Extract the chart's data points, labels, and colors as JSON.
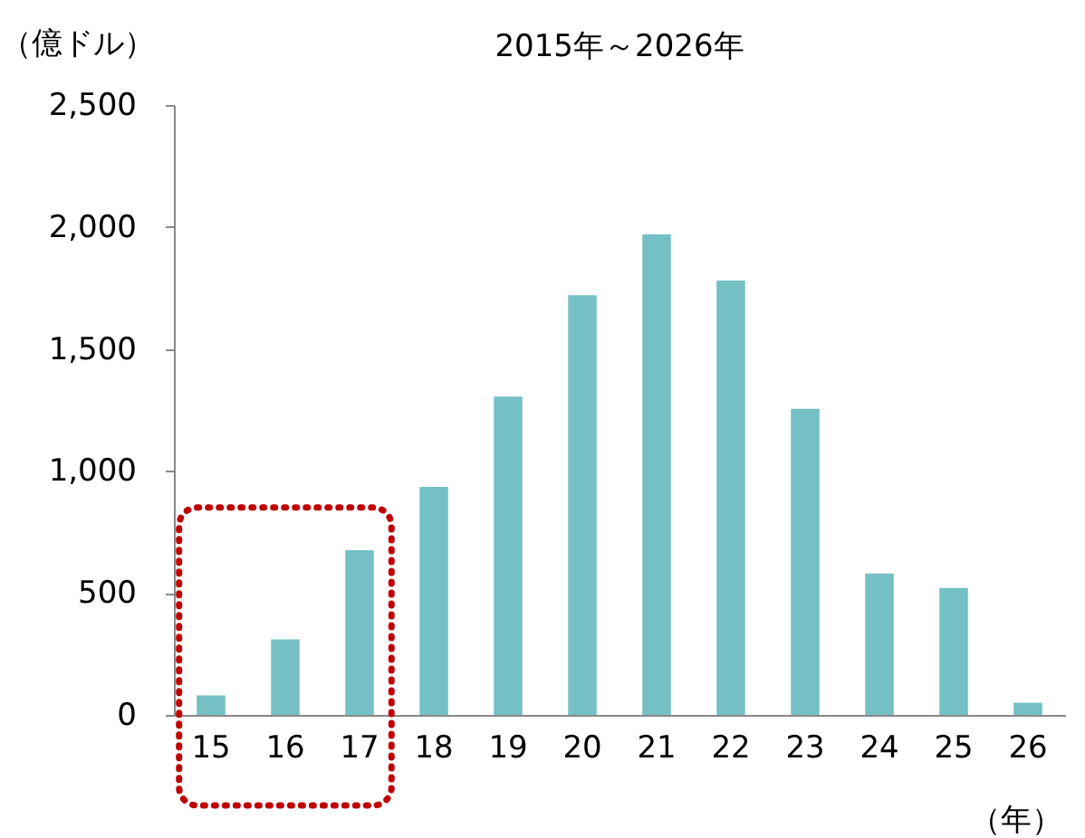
{
  "chart_data": {
    "type": "bar",
    "title": "2015年～2026年",
    "ylabel": "（億ドル）",
    "xlabel": "（年）",
    "categories": [
      "15",
      "16",
      "17",
      "18",
      "19",
      "20",
      "21",
      "22",
      "23",
      "24",
      "25",
      "26"
    ],
    "values": [
      80,
      310,
      675,
      935,
      1305,
      1720,
      1970,
      1780,
      1255,
      580,
      520,
      50
    ],
    "color": "#74c0c5",
    "ylim": [
      0,
      2500
    ],
    "yticks": [
      {
        "value": 0,
        "label": "0"
      },
      {
        "value": 500,
        "label": "500"
      },
      {
        "value": 1000,
        "label": "1,000"
      },
      {
        "value": 1500,
        "label": "1,500"
      },
      {
        "value": 2000,
        "label": "2,000"
      },
      {
        "value": 2500,
        "label": "2,500"
      }
    ],
    "grid": false
  }
}
